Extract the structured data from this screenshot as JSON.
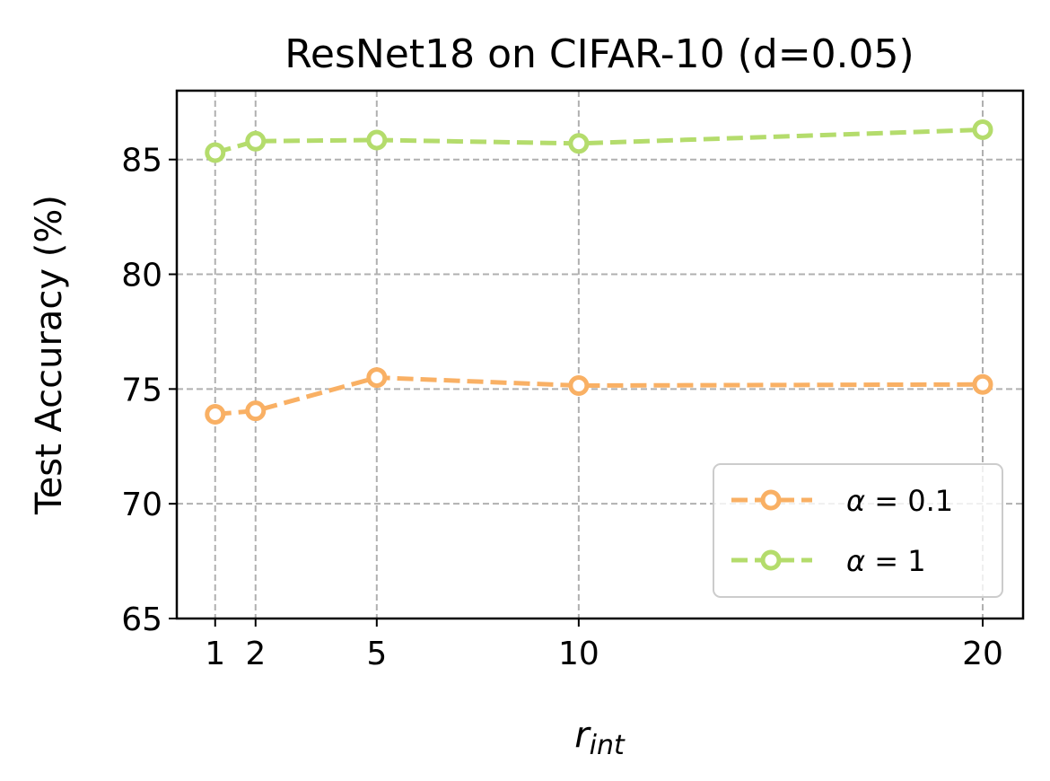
{
  "chart_data": {
    "type": "line",
    "title": "ResNet18 on CIFAR-10 (d=0.05)",
    "xlabel": "r",
    "xlabel_subscript": "int",
    "ylabel": "Test Accuracy (%)",
    "x": [
      1,
      2,
      5,
      10,
      20
    ],
    "xticks": [
      "1",
      "2",
      "5",
      "10",
      "20"
    ],
    "yticks": [
      "65",
      "70",
      "75",
      "80",
      "85"
    ],
    "xlim": [
      0.05,
      21.0
    ],
    "ylim": [
      65,
      88
    ],
    "grid": true,
    "legend_position": "lower-right",
    "series": [
      {
        "name": "α = 0.1",
        "symbol": "α",
        "rest": " = 0.1",
        "color": "#F9B064",
        "values": [
          73.9,
          74.05,
          75.5,
          75.15,
          75.2
        ]
      },
      {
        "name": "α = 1",
        "symbol": "α",
        "rest": " = 1",
        "color": "#B4DC6C",
        "values": [
          85.3,
          85.8,
          85.85,
          85.7,
          86.3
        ]
      }
    ]
  }
}
